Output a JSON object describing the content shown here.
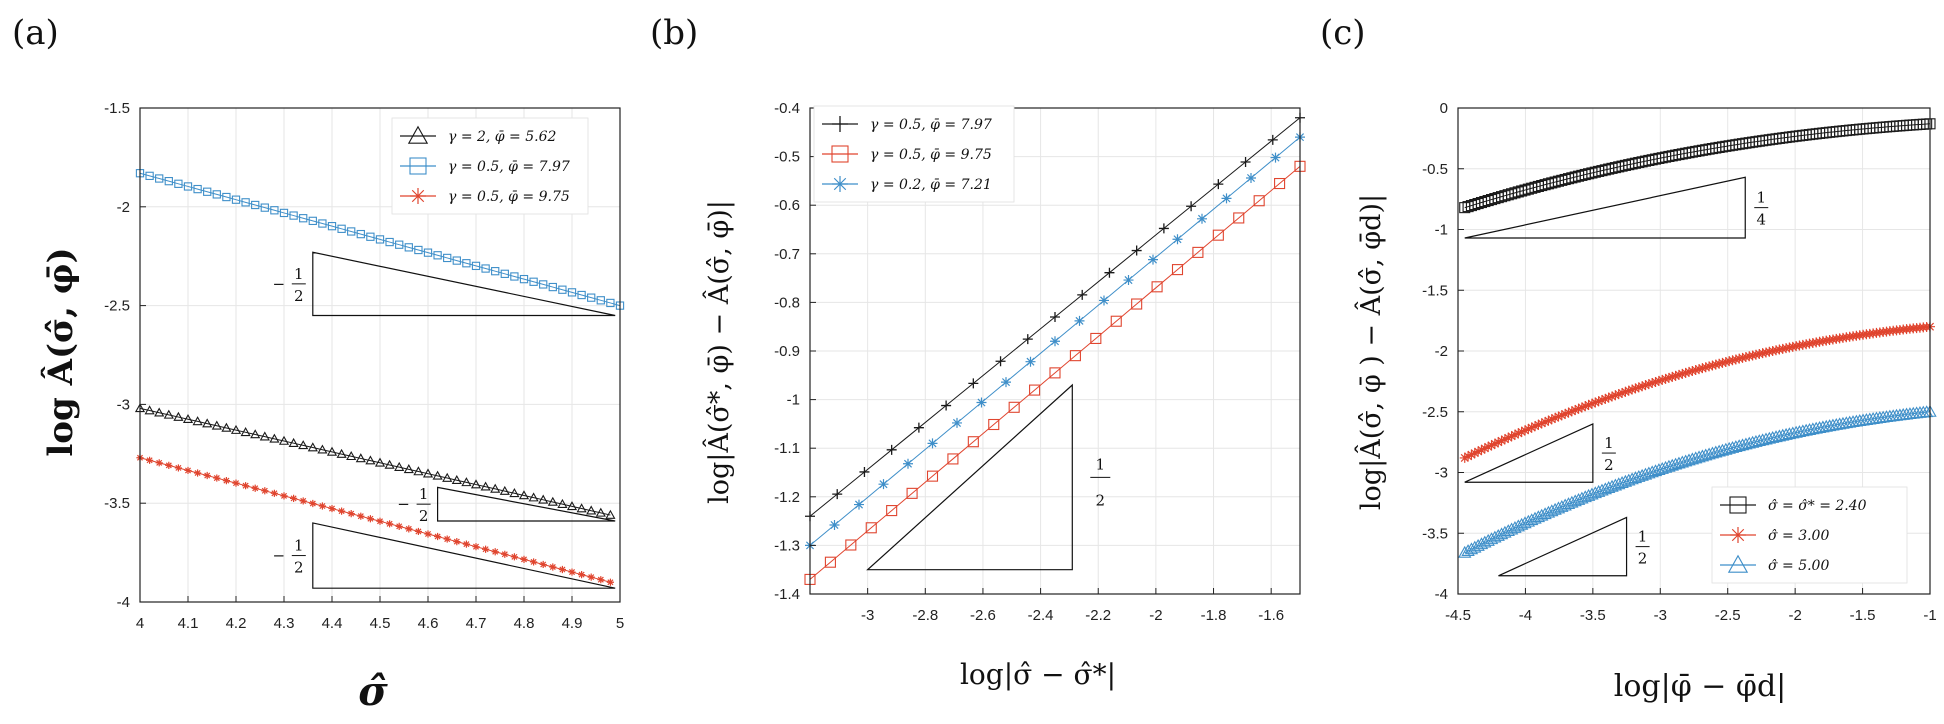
{
  "figure": {
    "panel_labels": [
      "(a)",
      "(b)",
      "(c)"
    ]
  },
  "colors": {
    "black": "#1a1a1a",
    "blue": "#3f8fc9",
    "red": "#e0452f",
    "grid": "#e6e6e6"
  },
  "chart_data": [
    {
      "type": "line",
      "panel": "(a)",
      "xlabel": "σ̂",
      "ylabel": "log Â(σ̂, φ̄)",
      "xlim": [
        4,
        5
      ],
      "ylim": [
        -4,
        -1.5
      ],
      "xticks": [
        4,
        4.1,
        4.2,
        4.3,
        4.4,
        4.5,
        4.6,
        4.7,
        4.8,
        4.9,
        5
      ],
      "xtick_labels": [
        "4",
        "4.1",
        "4.2",
        "4.3",
        "4.4",
        "4.5",
        "4.6",
        "4.7",
        "4.8",
        "4.9",
        "5"
      ],
      "yticks": [
        -4,
        -3.5,
        -3,
        -2.5,
        -2,
        -1.5
      ],
      "ytick_labels": [
        "-4",
        "-3.5",
        "-3",
        "-2.5",
        "-2",
        "-1.5"
      ],
      "legend_position": "top-right",
      "series": [
        {
          "name": "γ = 2,    φ̄ = 5.62",
          "color": "#1a1a1a",
          "marker": "triangle",
          "x_start": 4,
          "x_end": 4.98,
          "y_start": -3.02,
          "y_end": -3.56,
          "n": 50
        },
        {
          "name": "γ = 0.5, φ̄ = 7.97",
          "color": "#3f8fc9",
          "marker": "square",
          "x_start": 4,
          "x_end": 5,
          "y_start": -1.83,
          "y_end": -2.5,
          "n": 51
        },
        {
          "name": "γ = 0.5, φ̄ = 9.75",
          "color": "#e0452f",
          "marker": "star",
          "x_start": 4,
          "x_end": 4.98,
          "y_start": -3.27,
          "y_end": -3.9,
          "n": 50
        }
      ],
      "slope_triangles": [
        {
          "label_sign": "−",
          "num": "1",
          "den": "2",
          "x1": 4.36,
          "x2": 4.99,
          "y_top": -2.23,
          "y_bottom": -2.55
        },
        {
          "label_sign": "−",
          "num": "1",
          "den": "2",
          "x1": 4.62,
          "x2": 4.99,
          "y_top": -3.42,
          "y_bottom": -3.59
        },
        {
          "label_sign": "−",
          "num": "1",
          "den": "2",
          "x1": 4.36,
          "x2": 4.99,
          "y_top": -3.6,
          "y_bottom": -3.93
        }
      ]
    },
    {
      "type": "line",
      "panel": "(b)",
      "xlabel": "log|σ̂ − σ̂*|",
      "ylabel": "log|Â(σ̂*, φ̄) − Â(σ̂, φ̄)|",
      "xlim": [
        -3.2,
        -1.5
      ],
      "ylim": [
        -1.4,
        -0.4
      ],
      "xticks": [
        -3,
        -2.8,
        -2.6,
        -2.4,
        -2.2,
        -2,
        -1.8,
        -1.6
      ],
      "xtick_labels": [
        "-3",
        "-2.8",
        "-2.6",
        "-2.4",
        "-2.2",
        "-2",
        "-1.8",
        "-1.6"
      ],
      "yticks": [
        -1.4,
        -1.3,
        -1.2,
        -1.1,
        -1,
        -0.9,
        -0.8,
        -0.7,
        -0.6,
        -0.5,
        -0.4
      ],
      "ytick_labels": [
        "-1.4",
        "-1.3",
        "-1.2",
        "-1.1",
        "-1",
        "-0.9",
        "-0.8",
        "-0.7",
        "-0.6",
        "-0.5",
        "-0.4"
      ],
      "legend_position": "top-left",
      "series": [
        {
          "name": "γ = 0.5, φ̄ = 7.97",
          "color": "#1a1a1a",
          "marker": "plus",
          "x_start": -3.2,
          "x_end": -1.5,
          "y_start": -1.24,
          "y_end": -0.42,
          "n": 19,
          "line_start_x": -3.2
        },
        {
          "name": "γ = 0.5, φ̄ = 9.75",
          "color": "#e0452f",
          "marker": "square",
          "x_start": -3.2,
          "x_end": -1.5,
          "y_start": -1.37,
          "y_end": -0.52,
          "n": 25
        },
        {
          "name": "γ = 0.2, φ̄ = 7.21",
          "color": "#3f8fc9",
          "marker": "star",
          "x_start": -3.2,
          "x_end": -1.5,
          "y_start": -1.3,
          "y_end": -0.46,
          "n": 21
        }
      ],
      "slope_triangles": [
        {
          "label_sign": "",
          "num": "1",
          "den": "2",
          "x1": -3.0,
          "x2": -2.29,
          "y_top": -0.97,
          "y_bottom": -1.35
        }
      ]
    },
    {
      "type": "line",
      "panel": "(c)",
      "xlabel": "log|φ̄ − φ̄d|",
      "ylabel": "log|Â(σ̂, φ̄ ) − Â(σ̂, φ̄d)|",
      "xlim": [
        -4.5,
        -1
      ],
      "ylim": [
        -4,
        0
      ],
      "xticks": [
        -4.5,
        -4,
        -3.5,
        -3,
        -2.5,
        -2,
        -1.5,
        -1
      ],
      "xtick_labels": [
        "-4.5",
        "-4",
        "-3.5",
        "-3",
        "-2.5",
        "-2",
        "-1.5",
        "-1"
      ],
      "yticks": [
        -4,
        -3.5,
        -3,
        -2.5,
        -2,
        -1.5,
        -1,
        -0.5,
        0
      ],
      "ytick_labels": [
        "-4",
        "-3.5",
        "-3",
        "-2.5",
        "-2",
        "-1.5",
        "-1",
        "-0.5",
        "0"
      ],
      "legend_position": "bottom-right",
      "series": [
        {
          "name": "σ̂ = σ̂* = 2.40",
          "color": "#1a1a1a",
          "marker": "square",
          "x_start": -4.45,
          "x_end": -1.0,
          "y_start": -0.82,
          "y_end": -0.13,
          "n": 140
        },
        {
          "name": "σ̂ = 3.00",
          "color": "#e0452f",
          "marker": "star",
          "x_start": -4.45,
          "x_end": -1.0,
          "y_start": -2.88,
          "y_end": -1.8,
          "n": 140
        },
        {
          "name": "σ̂ = 5.00",
          "color": "#3f8fc9",
          "marker": "triangle",
          "x_start": -4.45,
          "x_end": -1.0,
          "y_start": -3.66,
          "y_end": -2.5,
          "n": 140
        }
      ],
      "slope_triangles": [
        {
          "label_sign": "",
          "num": "1",
          "den": "4",
          "x1": -4.45,
          "x2": -2.37,
          "y_top": -0.57,
          "y_bottom": -1.07
        },
        {
          "label_sign": "",
          "num": "1",
          "den": "2",
          "x1": -4.45,
          "x2": -3.5,
          "y_top": -2.6,
          "y_bottom": -3.08
        },
        {
          "label_sign": "",
          "num": "1",
          "den": "2",
          "x1": -4.2,
          "x2": -3.25,
          "y_top": -3.37,
          "y_bottom": -3.85
        }
      ]
    }
  ]
}
